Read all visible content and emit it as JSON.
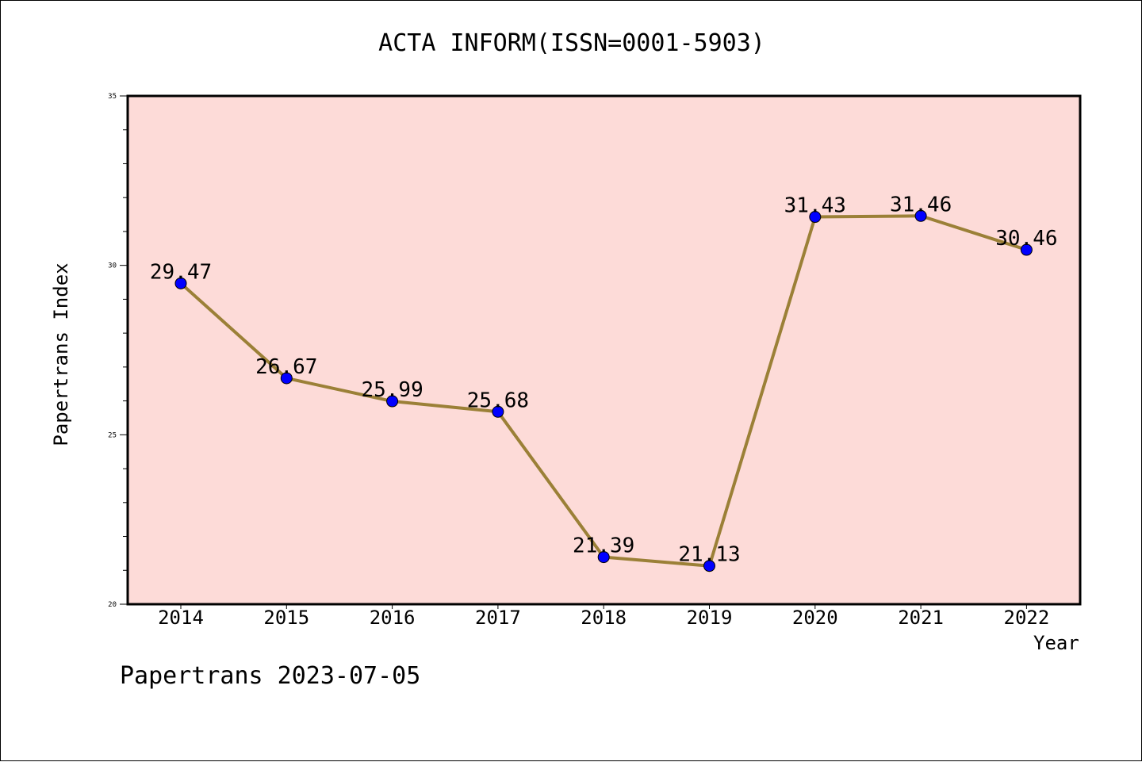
{
  "chart_data": {
    "type": "line",
    "title": "ACTA INFORM(ISSN=0001-5903)",
    "xlabel": "Year",
    "ylabel": "Papertrans Index",
    "categories": [
      "2014",
      "2015",
      "2016",
      "2017",
      "2018",
      "2019",
      "2020",
      "2021",
      "2022"
    ],
    "series": [
      {
        "values": [
          29.47,
          26.67,
          25.99,
          25.68,
          21.39,
          21.13,
          31.43,
          31.46,
          30.46
        ]
      }
    ],
    "data_labels": [
      "29.47",
      "26.67",
      "25.99",
      "25.68",
      "21.39",
      "21.13",
      "31.43",
      "31.46",
      "30.46"
    ],
    "ylim": [
      20,
      35
    ],
    "yticks_major": [
      "20",
      "25",
      "30",
      "35"
    ],
    "grid": false,
    "legend": "none",
    "colors": {
      "plot_background": "#fddbd8",
      "line": "#9b8037",
      "marker": "#0000ff"
    }
  },
  "footer": {
    "credit": "Papertrans 2023-07-05"
  }
}
